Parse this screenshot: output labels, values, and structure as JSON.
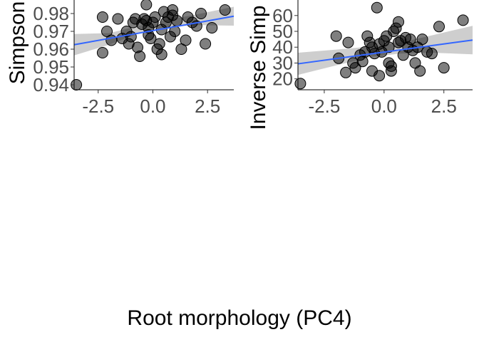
{
  "figure": {
    "xlabel": "Root morphology (PC4)"
  },
  "chart_data": [
    {
      "type": "scatter",
      "title": "",
      "xlabel": "",
      "ylabel": "Simpson",
      "xlim": [
        -3.6,
        3.7
      ],
      "ylim": [
        0.938,
        0.986
      ],
      "xticks": [
        -2.5,
        0.0,
        2.5
      ],
      "xtick_labels": [
        "-2.5",
        "0.0",
        "2.5"
      ],
      "yticks": [
        0.94,
        0.95,
        0.96,
        0.97,
        0.98
      ],
      "ytick_labels": [
        "0.94",
        "0.95",
        "0.96",
        "0.97",
        "0.98"
      ],
      "grid": false,
      "point_color": "#000000",
      "trend_color": "#3366FF",
      "band_color": "#bdbdbd",
      "trend": {
        "x": [
          -3.6,
          3.7
        ],
        "y": [
          0.9625,
          0.9785
        ]
      },
      "band": {
        "x": [
          -3.6,
          -2.0,
          -0.5,
          0.7,
          2.0,
          3.7
        ],
        "lower": [
          0.9565,
          0.9625,
          0.9695,
          0.9725,
          0.9735,
          0.9732
        ],
        "upper": [
          0.9685,
          0.969,
          0.9735,
          0.9765,
          0.9795,
          0.9838
        ]
      },
      "x": [
        -3.5,
        -2.3,
        -2.1,
        -2.3,
        -1.9,
        -1.6,
        -1.4,
        -1.2,
        -1.0,
        -0.9,
        -0.8,
        -0.7,
        -0.6,
        -0.5,
        -0.4,
        -0.3,
        -0.3,
        -0.2,
        -0.1,
        0.0,
        0.1,
        0.2,
        0.3,
        0.4,
        0.5,
        0.6,
        0.7,
        0.8,
        0.9,
        1.0,
        1.1,
        1.3,
        1.5,
        1.6,
        1.8,
        2.0,
        2.2,
        2.4,
        2.7,
        3.3,
        -1.1,
        -0.2,
        0.4,
        0.9
      ],
      "y": [
        0.94,
        0.978,
        0.97,
        0.958,
        0.965,
        0.977,
        0.966,
        0.97,
        0.967,
        0.975,
        0.977,
        0.961,
        0.956,
        0.974,
        0.977,
        0.985,
        0.976,
        0.972,
        0.966,
        0.975,
        0.978,
        0.96,
        0.963,
        0.957,
        0.981,
        0.975,
        0.978,
        0.967,
        0.982,
        0.97,
        0.976,
        0.96,
        0.965,
        0.978,
        0.975,
        0.973,
        0.98,
        0.963,
        0.972,
        0.982,
        0.963,
        0.968,
        0.971,
        0.979
      ]
    },
    {
      "type": "scatter",
      "title": "",
      "xlabel": "",
      "ylabel": "Inverse Simp",
      "xlim": [
        -3.6,
        3.7
      ],
      "ylim": [
        14,
        68
      ],
      "xticks": [
        -2.5,
        0.0,
        2.5
      ],
      "xtick_labels": [
        "-2.5",
        "0.0",
        "2.5"
      ],
      "yticks": [
        20,
        30,
        40,
        50,
        60
      ],
      "ytick_labels": [
        "20",
        "30",
        "40",
        "50",
        "60"
      ],
      "grid": false,
      "point_color": "#000000",
      "trend_color": "#3366FF",
      "band_color": "#bdbdbd",
      "trend": {
        "x": [
          -3.6,
          3.7
        ],
        "y": [
          29.5,
          44.5
        ]
      },
      "band": {
        "x": [
          -3.6,
          -2.0,
          -0.5,
          0.7,
          2.0,
          3.7
        ],
        "lower": [
          22.5,
          28.5,
          34.0,
          36.0,
          36.5,
          35.5
        ],
        "upper": [
          36.5,
          38.5,
          40.5,
          43.0,
          47.5,
          53.5
        ]
      },
      "x": [
        -3.5,
        -2.0,
        -1.9,
        -1.6,
        -1.5,
        -1.3,
        -1.2,
        -1.0,
        -0.9,
        -0.8,
        -0.7,
        -0.6,
        -0.5,
        -0.5,
        -0.4,
        -0.3,
        -0.2,
        -0.1,
        0.0,
        0.1,
        0.2,
        0.3,
        0.3,
        0.4,
        0.5,
        0.6,
        0.7,
        0.8,
        0.9,
        1.0,
        1.1,
        1.2,
        1.3,
        1.5,
        1.6,
        1.8,
        2.0,
        2.3,
        2.5,
        3.3,
        -0.2,
        0.2,
        0.6,
        1.4
      ],
      "y": [
        17,
        47,
        33,
        24,
        43,
        30,
        27,
        35,
        31,
        37,
        47,
        43,
        25,
        40,
        36,
        65,
        42,
        37,
        44,
        47,
        30,
        28,
        25,
        50,
        52,
        56,
        44,
        35,
        46,
        40,
        45,
        38,
        30,
        25,
        45,
        37,
        36,
        53,
        27,
        57,
        22,
        40,
        43,
        40
      ]
    }
  ]
}
